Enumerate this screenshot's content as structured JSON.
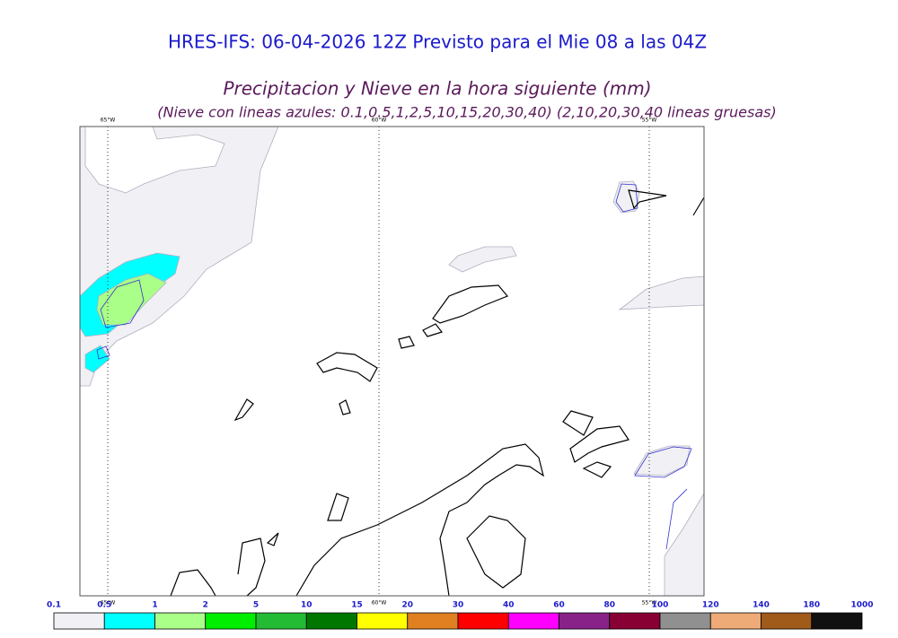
{
  "header": {
    "title": "HRES-IFS: 06-04-2026 12Z Previsto para el Mie 08 a las 04Z",
    "subtitle": "Precipitacion y Nieve en la hora siguiente (mm)",
    "note": "(Nieve con lineas azules: 0.1,0.5,1,2,5,10,15,20,30,40)  (2,10,20,30,40 lineas gruesas)"
  },
  "map": {
    "meridians": [
      {
        "label": "65°W"
      },
      {
        "label": "60°W"
      },
      {
        "label": "55°W"
      }
    ]
  },
  "colorbar": {
    "labels": [
      "0.1",
      "0.5",
      "1",
      "2",
      "5",
      "10",
      "15",
      "20",
      "30",
      "40",
      "60",
      "80",
      "100",
      "120",
      "140",
      "180",
      "1000"
    ],
    "colors": [
      "#f0f0f5",
      "#00ffff",
      "#aaff88",
      "#00ee00",
      "#22bb33",
      "#007700",
      "#ffff00",
      "#e08020",
      "#ff0000",
      "#ff00ff",
      "#882288",
      "#880033",
      "#909090",
      "#eeaa77",
      "#a05a1a",
      "#111111"
    ]
  }
}
